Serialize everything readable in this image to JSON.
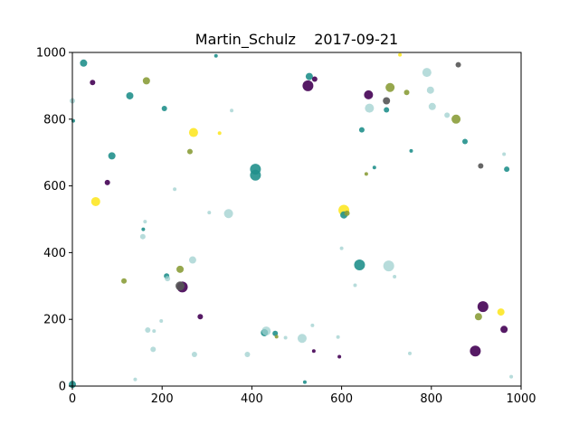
{
  "chart_data": {
    "type": "scatter",
    "title": "Martin_Schulz    2017-09-21",
    "xlabel": "",
    "ylabel": "",
    "xlim": [
      0,
      1000
    ],
    "ylim": [
      0,
      1000
    ],
    "xticks": [
      0,
      200,
      400,
      600,
      800,
      1000
    ],
    "yticks": [
      0,
      200,
      400,
      600,
      800,
      1000
    ],
    "xtick_labels": [
      "0",
      "200",
      "400",
      "600",
      "800",
      "1000"
    ],
    "ytick_labels": [
      "0",
      "200",
      "400",
      "600",
      "800",
      "1000"
    ],
    "grid": false,
    "colors": {
      "purple": "#440154",
      "teal": "#21908c",
      "yellow": "#fde725",
      "lightteal": "#9fd0cf",
      "olive": "#8b9d3a",
      "gray": "#555555",
      "frame": "#000000"
    },
    "points": [
      {
        "x": 0,
        "y": 5,
        "size": 4,
        "color": "teal"
      },
      {
        "x": 0,
        "y": 855,
        "size": 3,
        "color": "lightteal"
      },
      {
        "x": 2,
        "y": 795,
        "size": 2,
        "color": "teal"
      },
      {
        "x": 25,
        "y": 968,
        "size": 4,
        "color": "teal"
      },
      {
        "x": 45,
        "y": 910,
        "size": 3,
        "color": "purple"
      },
      {
        "x": 52,
        "y": 553,
        "size": 5,
        "color": "yellow"
      },
      {
        "x": 78,
        "y": 610,
        "size": 3,
        "color": "purple"
      },
      {
        "x": 88,
        "y": 690,
        "size": 4,
        "color": "teal"
      },
      {
        "x": 115,
        "y": 315,
        "size": 3,
        "color": "olive"
      },
      {
        "x": 128,
        "y": 870,
        "size": 4,
        "color": "teal"
      },
      {
        "x": 140,
        "y": 20,
        "size": 2,
        "color": "lightteal"
      },
      {
        "x": 157,
        "y": 448,
        "size": 3,
        "color": "lightteal"
      },
      {
        "x": 158,
        "y": 470,
        "size": 2,
        "color": "teal"
      },
      {
        "x": 162,
        "y": 493,
        "size": 2,
        "color": "lightteal"
      },
      {
        "x": 165,
        "y": 915,
        "size": 4,
        "color": "olive"
      },
      {
        "x": 168,
        "y": 168,
        "size": 3,
        "color": "lightteal"
      },
      {
        "x": 180,
        "y": 110,
        "size": 3,
        "color": "lightteal"
      },
      {
        "x": 182,
        "y": 165,
        "size": 2,
        "color": "lightteal"
      },
      {
        "x": 198,
        "y": 195,
        "size": 2,
        "color": "lightteal"
      },
      {
        "x": 205,
        "y": 832,
        "size": 3,
        "color": "teal"
      },
      {
        "x": 210,
        "y": 330,
        "size": 3,
        "color": "teal"
      },
      {
        "x": 212,
        "y": 322,
        "size": 3,
        "color": "lightteal"
      },
      {
        "x": 228,
        "y": 590,
        "size": 2,
        "color": "lightteal"
      },
      {
        "x": 240,
        "y": 350,
        "size": 4,
        "color": "olive"
      },
      {
        "x": 245,
        "y": 297,
        "size": 6,
        "color": "purple"
      },
      {
        "x": 240,
        "y": 300,
        "size": 5,
        "color": "gray"
      },
      {
        "x": 262,
        "y": 703,
        "size": 3,
        "color": "olive"
      },
      {
        "x": 268,
        "y": 378,
        "size": 4,
        "color": "lightteal"
      },
      {
        "x": 270,
        "y": 760,
        "size": 5,
        "color": "yellow"
      },
      {
        "x": 272,
        "y": 95,
        "size": 3,
        "color": "lightteal"
      },
      {
        "x": 285,
        "y": 208,
        "size": 3,
        "color": "purple"
      },
      {
        "x": 305,
        "y": 520,
        "size": 2,
        "color": "lightteal"
      },
      {
        "x": 320,
        "y": 990,
        "size": 2,
        "color": "teal"
      },
      {
        "x": 328,
        "y": 758,
        "size": 2,
        "color": "yellow"
      },
      {
        "x": 348,
        "y": 517,
        "size": 5,
        "color": "lightteal"
      },
      {
        "x": 355,
        "y": 826,
        "size": 2,
        "color": "lightteal"
      },
      {
        "x": 390,
        "y": 95,
        "size": 3,
        "color": "lightteal"
      },
      {
        "x": 408,
        "y": 650,
        "size": 6,
        "color": "teal"
      },
      {
        "x": 408,
        "y": 632,
        "size": 6,
        "color": "teal"
      },
      {
        "x": 428,
        "y": 160,
        "size": 4,
        "color": "teal"
      },
      {
        "x": 432,
        "y": 165,
        "size": 5,
        "color": "lightteal"
      },
      {
        "x": 452,
        "y": 158,
        "size": 3,
        "color": "teal"
      },
      {
        "x": 455,
        "y": 148,
        "size": 2,
        "color": "olive"
      },
      {
        "x": 475,
        "y": 145,
        "size": 2,
        "color": "lightteal"
      },
      {
        "x": 512,
        "y": 143,
        "size": 5,
        "color": "lightteal"
      },
      {
        "x": 518,
        "y": 12,
        "size": 2,
        "color": "teal"
      },
      {
        "x": 525,
        "y": 900,
        "size": 6,
        "color": "purple"
      },
      {
        "x": 528,
        "y": 928,
        "size": 4,
        "color": "teal"
      },
      {
        "x": 535,
        "y": 182,
        "size": 2,
        "color": "lightteal"
      },
      {
        "x": 538,
        "y": 105,
        "size": 2,
        "color": "purple"
      },
      {
        "x": 540,
        "y": 920,
        "size": 3,
        "color": "purple"
      },
      {
        "x": 592,
        "y": 147,
        "size": 2,
        "color": "lightteal"
      },
      {
        "x": 595,
        "y": 88,
        "size": 2,
        "color": "purple"
      },
      {
        "x": 600,
        "y": 413,
        "size": 2,
        "color": "lightteal"
      },
      {
        "x": 605,
        "y": 527,
        "size": 6,
        "color": "yellow"
      },
      {
        "x": 605,
        "y": 513,
        "size": 4,
        "color": "teal"
      },
      {
        "x": 612,
        "y": 518,
        "size": 3,
        "color": "olive"
      },
      {
        "x": 630,
        "y": 302,
        "size": 2,
        "color": "lightteal"
      },
      {
        "x": 640,
        "y": 363,
        "size": 6,
        "color": "teal"
      },
      {
        "x": 645,
        "y": 768,
        "size": 3,
        "color": "teal"
      },
      {
        "x": 655,
        "y": 636,
        "size": 2,
        "color": "olive"
      },
      {
        "x": 660,
        "y": 873,
        "size": 5,
        "color": "purple"
      },
      {
        "x": 662,
        "y": 833,
        "size": 5,
        "color": "lightteal"
      },
      {
        "x": 673,
        "y": 655,
        "size": 2,
        "color": "teal"
      },
      {
        "x": 700,
        "y": 855,
        "size": 4,
        "color": "gray"
      },
      {
        "x": 700,
        "y": 828,
        "size": 3,
        "color": "teal"
      },
      {
        "x": 705,
        "y": 360,
        "size": 6,
        "color": "lightteal"
      },
      {
        "x": 708,
        "y": 895,
        "size": 5,
        "color": "olive"
      },
      {
        "x": 718,
        "y": 328,
        "size": 2,
        "color": "lightteal"
      },
      {
        "x": 730,
        "y": 993,
        "size": 2,
        "color": "yellow"
      },
      {
        "x": 745,
        "y": 880,
        "size": 3,
        "color": "olive"
      },
      {
        "x": 752,
        "y": 98,
        "size": 2,
        "color": "lightteal"
      },
      {
        "x": 755,
        "y": 705,
        "size": 2,
        "color": "teal"
      },
      {
        "x": 790,
        "y": 940,
        "size": 5,
        "color": "lightteal"
      },
      {
        "x": 798,
        "y": 887,
        "size": 4,
        "color": "lightteal"
      },
      {
        "x": 802,
        "y": 838,
        "size": 4,
        "color": "lightteal"
      },
      {
        "x": 835,
        "y": 812,
        "size": 3,
        "color": "lightteal"
      },
      {
        "x": 855,
        "y": 800,
        "size": 5,
        "color": "olive"
      },
      {
        "x": 860,
        "y": 963,
        "size": 3,
        "color": "gray"
      },
      {
        "x": 875,
        "y": 733,
        "size": 3,
        "color": "teal"
      },
      {
        "x": 898,
        "y": 105,
        "size": 6,
        "color": "purple"
      },
      {
        "x": 905,
        "y": 208,
        "size": 4,
        "color": "olive"
      },
      {
        "x": 910,
        "y": 660,
        "size": 3,
        "color": "gray"
      },
      {
        "x": 915,
        "y": 238,
        "size": 6,
        "color": "purple"
      },
      {
        "x": 955,
        "y": 222,
        "size": 4,
        "color": "yellow"
      },
      {
        "x": 962,
        "y": 170,
        "size": 4,
        "color": "purple"
      },
      {
        "x": 962,
        "y": 695,
        "size": 2,
        "color": "lightteal"
      },
      {
        "x": 968,
        "y": 650,
        "size": 3,
        "color": "teal"
      },
      {
        "x": 978,
        "y": 28,
        "size": 2,
        "color": "lightteal"
      }
    ]
  }
}
